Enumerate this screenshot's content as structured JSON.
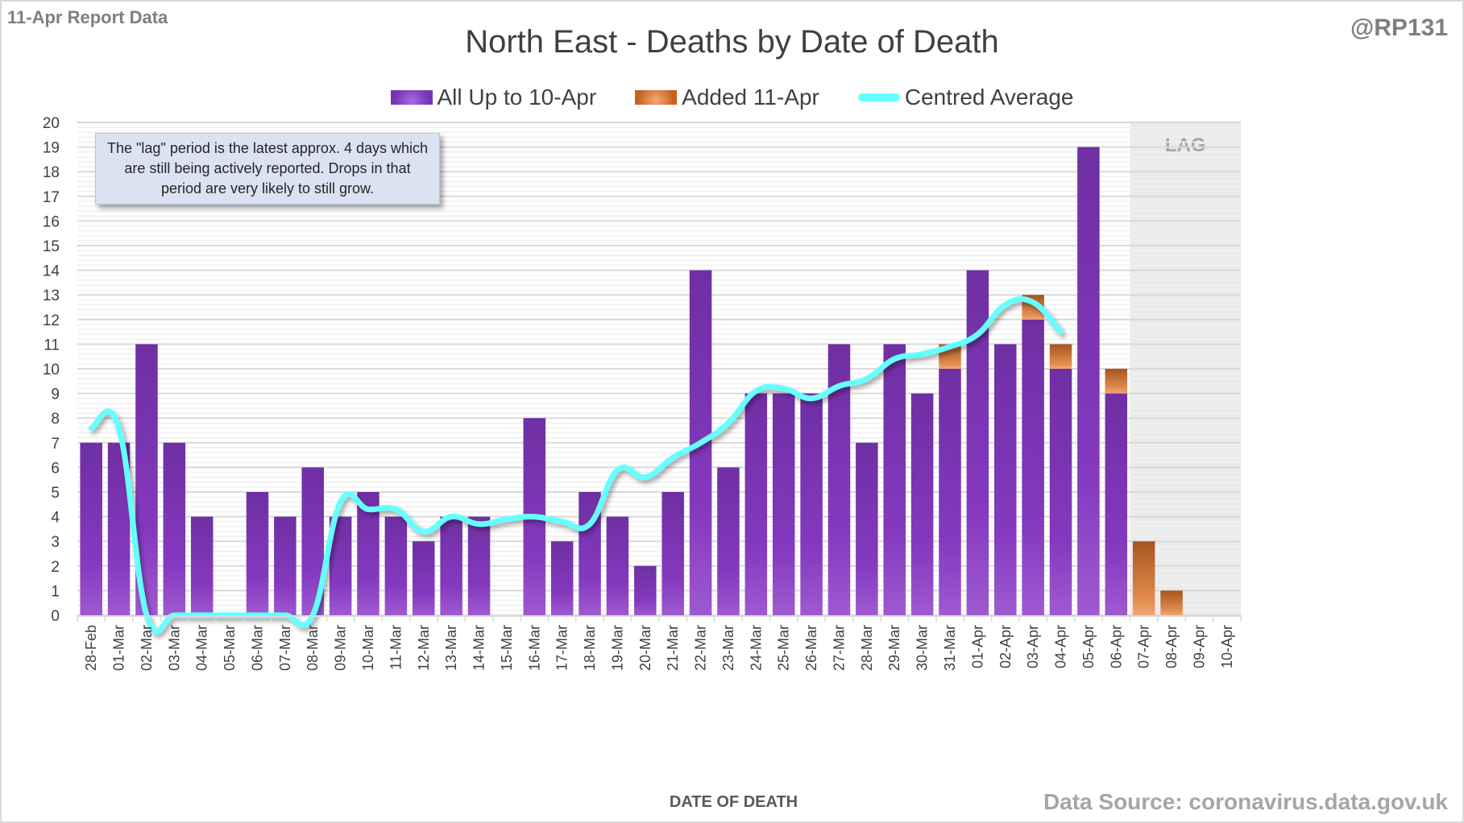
{
  "header": {
    "report_label": "11-Apr Report Data",
    "handle": "@RP131",
    "source": "Data Source: coronavirus.data.gov.uk"
  },
  "annotation": {
    "note": "The \"lag\" period is the latest approx. 4 days which are still being actively reported.  Drops in that period are very likely to still grow.",
    "lag_label": "LAG"
  },
  "colors": {
    "all_up_to": "#7a33b8",
    "added": "#d9702b",
    "centred_average": "#66ffff",
    "lag_shade": "#ebebeb"
  },
  "chart_data": {
    "type": "bar",
    "stacked": true,
    "title": "North East - Deaths by Date of Death",
    "xlabel": "DATE OF DEATH",
    "ylabel": "",
    "ylim": [
      0,
      20
    ],
    "yticks": [
      0,
      1,
      2,
      3,
      4,
      5,
      6,
      7,
      8,
      9,
      10,
      11,
      12,
      13,
      14,
      15,
      16,
      17,
      18,
      19,
      20
    ],
    "grid": true,
    "legend_position": "top-center",
    "lag_region": [
      "07-Apr",
      "10-Apr"
    ],
    "categories": [
      "28-Feb",
      "01-Mar",
      "02-Mar",
      "03-Mar",
      "04-Mar",
      "05-Mar",
      "06-Mar",
      "07-Mar",
      "08-Mar",
      "09-Mar",
      "10-Mar",
      "11-Mar",
      "12-Mar",
      "13-Mar",
      "14-Mar",
      "15-Mar",
      "16-Mar",
      "17-Mar",
      "18-Mar",
      "19-Mar",
      "20-Mar",
      "21-Mar",
      "22-Mar",
      "23-Mar",
      "24-Mar",
      "25-Mar",
      "26-Mar",
      "27-Mar",
      "28-Mar",
      "29-Mar",
      "30-Mar",
      "31-Mar",
      "01-Apr",
      "02-Apr",
      "03-Apr",
      "04-Apr",
      "05-Apr",
      "06-Apr",
      "07-Apr",
      "08-Apr",
      "09-Apr",
      "10-Apr"
    ],
    "series": [
      {
        "name": "All Up to 10-Apr",
        "kind": "bar",
        "values": [
          7,
          7,
          11,
          7,
          4,
          0,
          5,
          4,
          6,
          4,
          5,
          4,
          3,
          4,
          4,
          0,
          8,
          3,
          5,
          4,
          2,
          5,
          14,
          6,
          9,
          9,
          9,
          11,
          7,
          11,
          9,
          10,
          14,
          11,
          12,
          10,
          19,
          9,
          0,
          0,
          0,
          0
        ]
      },
      {
        "name": "Added 11-Apr",
        "kind": "bar",
        "values": [
          0,
          0,
          0,
          0,
          0,
          0,
          0,
          0,
          0,
          0,
          0,
          0,
          0,
          0,
          0,
          0,
          0,
          0,
          0,
          0,
          0,
          0,
          0,
          0,
          0,
          0,
          0,
          0,
          0,
          0,
          0,
          1,
          0,
          0,
          1,
          1,
          0,
          1,
          3,
          1,
          0,
          0
        ]
      },
      {
        "name": "Centred Average",
        "kind": "line",
        "values": [
          7.6,
          7.6,
          0,
          0,
          0,
          0,
          0,
          0,
          0,
          4.6,
          4.3,
          4.3,
          3.4,
          4.0,
          3.7,
          3.9,
          4.0,
          3.8,
          3.7,
          5.9,
          5.6,
          6.4,
          7.0,
          7.8,
          9.1,
          9.2,
          8.8,
          9.3,
          9.6,
          10.4,
          10.6,
          10.9,
          11.4,
          12.6,
          12.7,
          11.5,
          null,
          null,
          null,
          null,
          null,
          null
        ]
      }
    ]
  }
}
